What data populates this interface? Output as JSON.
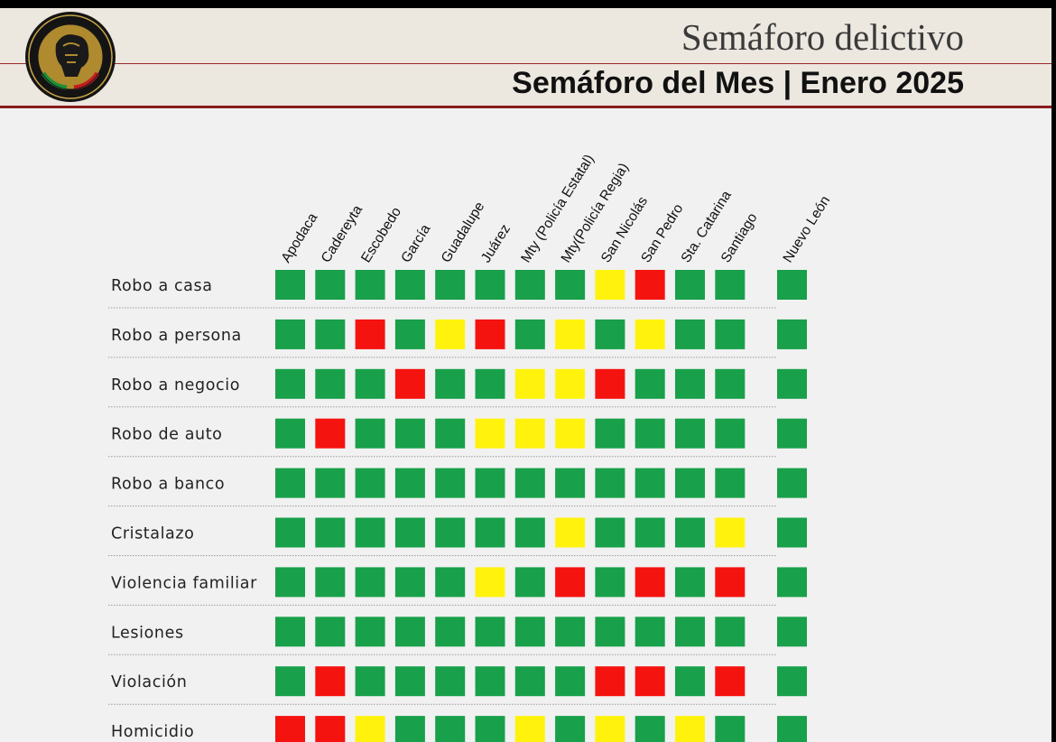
{
  "header": {
    "title": "Semáforo delictivo",
    "subtitle": "Semáforo del Mes |  Enero  2025",
    "logo": {
      "icon": "fiscalia-nuevo-leon-seal-icon"
    }
  },
  "colors": {
    "verde": "#19a04a",
    "amarillo": "#fff30d",
    "rojo": "#f5130f",
    "header_bg": "#ece7df",
    "header_border": "#8a1c1c",
    "page_bg": "#f1f1f1"
  },
  "chart_data": {
    "type": "heatmap",
    "columns": [
      "Apodaca",
      "Cadereyta",
      "Escobedo",
      "García",
      "Guadalupe",
      "Juárez",
      "Mty (Policía Estatal)",
      "Mty(Policía Regia)",
      "San Nicolás",
      "San Pedro",
      "Sta. Catarina",
      "Santiago"
    ],
    "total_column": "Nuevo León",
    "rows": [
      "Robo a casa",
      "Robo a persona",
      "Robo a negocio",
      "Robo de auto",
      "Robo a banco",
      "Cristalazo",
      "Violencia familiar",
      "Lesiones",
      "Violación",
      "Homicidio"
    ],
    "legend_categories": [
      "verde",
      "amarillo",
      "rojo"
    ],
    "values": [
      [
        "verde",
        "verde",
        "verde",
        "verde",
        "verde",
        "verde",
        "verde",
        "verde",
        "amarillo",
        "rojo",
        "verde",
        "verde"
      ],
      [
        "verde",
        "verde",
        "rojo",
        "verde",
        "amarillo",
        "rojo",
        "verde",
        "amarillo",
        "verde",
        "amarillo",
        "verde",
        "verde"
      ],
      [
        "verde",
        "verde",
        "verde",
        "rojo",
        "verde",
        "verde",
        "amarillo",
        "amarillo",
        "rojo",
        "verde",
        "verde",
        "verde"
      ],
      [
        "verde",
        "rojo",
        "verde",
        "verde",
        "verde",
        "amarillo",
        "amarillo",
        "amarillo",
        "verde",
        "verde",
        "verde",
        "verde"
      ],
      [
        "verde",
        "verde",
        "verde",
        "verde",
        "verde",
        "verde",
        "verde",
        "verde",
        "verde",
        "verde",
        "verde",
        "verde"
      ],
      [
        "verde",
        "verde",
        "verde",
        "verde",
        "verde",
        "verde",
        "verde",
        "amarillo",
        "verde",
        "verde",
        "verde",
        "amarillo"
      ],
      [
        "verde",
        "verde",
        "verde",
        "verde",
        "verde",
        "amarillo",
        "verde",
        "rojo",
        "verde",
        "rojo",
        "verde",
        "rojo"
      ],
      [
        "verde",
        "verde",
        "verde",
        "verde",
        "verde",
        "verde",
        "verde",
        "verde",
        "verde",
        "verde",
        "verde",
        "verde"
      ],
      [
        "verde",
        "rojo",
        "verde",
        "verde",
        "verde",
        "verde",
        "verde",
        "verde",
        "rojo",
        "rojo",
        "verde",
        "rojo"
      ],
      [
        "rojo",
        "rojo",
        "amarillo",
        "verde",
        "verde",
        "verde",
        "amarillo",
        "verde",
        "amarillo",
        "verde",
        "amarillo",
        "verde"
      ]
    ],
    "total_values": [
      "verde",
      "verde",
      "verde",
      "verde",
      "verde",
      "verde",
      "verde",
      "verde",
      "verde",
      "verde"
    ]
  }
}
